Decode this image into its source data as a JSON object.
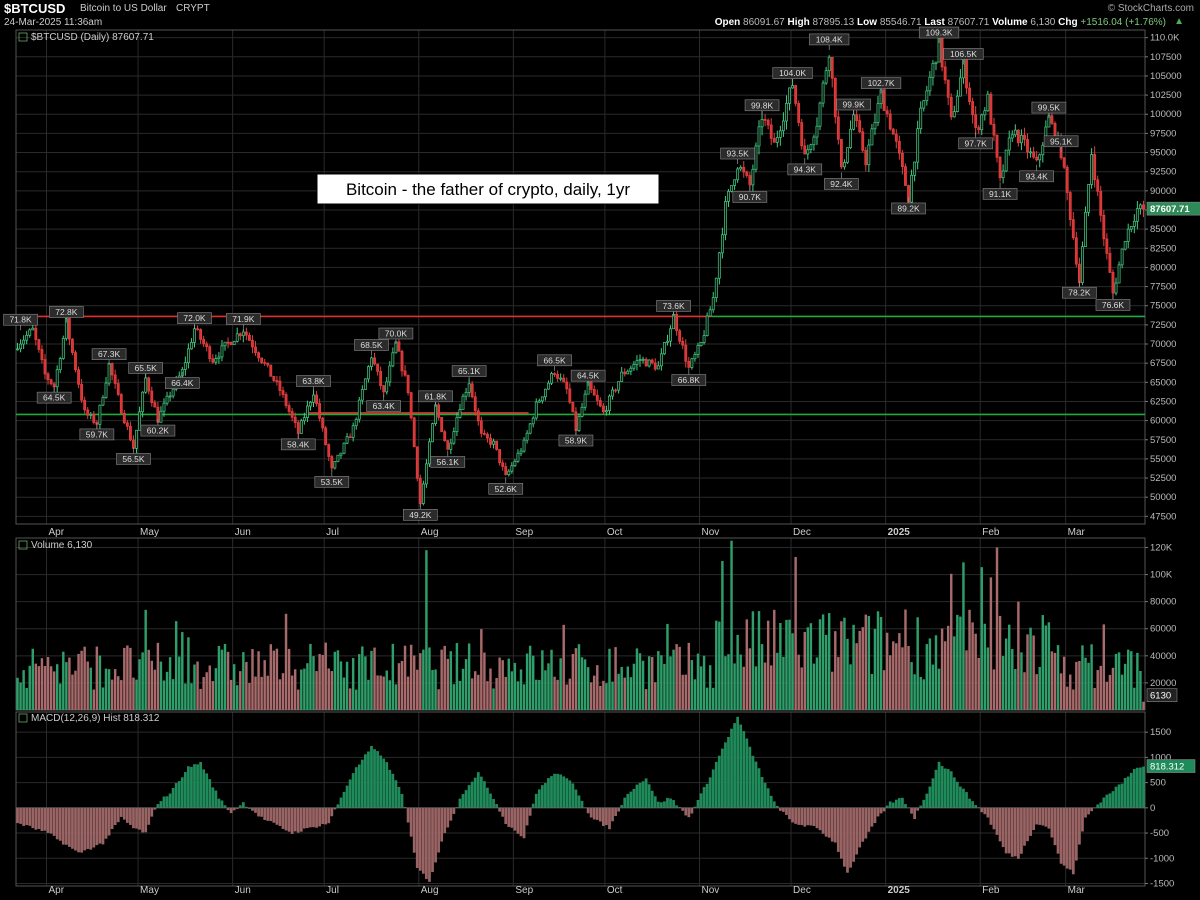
{
  "header": {
    "symbol": "$BTCUSD",
    "name": "Bitcoin to US Dollar",
    "exchange": "CRYPT",
    "date": "24-Mar-2025 11:36am",
    "brand": "© StockCharts.com",
    "open_label": "Open",
    "open": "86091.67",
    "high_label": "High",
    "high": "87895.13",
    "low_label": "Low",
    "low": "85546.71",
    "last_label": "Last",
    "last": "87607.71",
    "volume_label": "Volume",
    "volume": "6,130",
    "chg_label": "Chg",
    "chg": "+1516.04 (+1.76%)"
  },
  "annotation": "Bitcoin - the father of crypto, daily, 1yr",
  "colors": {
    "up": "#2e9e6a",
    "down": "#c0392b",
    "grid": "#2a2a2a",
    "resistance": "#e03030",
    "support": "#1faa3a"
  },
  "chart_data": [
    {
      "type": "candlestick",
      "title": "$BTCUSD (Daily) 87607.71",
      "y_ticks": [
        47500,
        50000,
        52500,
        55000,
        57500,
        60000,
        62500,
        65000,
        67500,
        70000,
        72500,
        75000,
        77500,
        80000,
        82500,
        85000,
        87500,
        90000,
        92500,
        95000,
        97500,
        100000,
        102500,
        105000,
        107500,
        110000
      ],
      "y_tick_labels": [
        "47500",
        "50000",
        "52500",
        "55000",
        "57500",
        "60000",
        "62500",
        "65000",
        "67500",
        "70000",
        "72500",
        "75000",
        "77500",
        "80000",
        "82500",
        "85000",
        "87500",
        "90000",
        "92500",
        "95000",
        "97500",
        "100000",
        "102500",
        "105000",
        "107500",
        "110.0K"
      ],
      "ylim": [
        46500,
        111000
      ],
      "last_value_label": "87607.71",
      "x_month_labels": [
        {
          "label": "Apr",
          "day": 10
        },
        {
          "label": "May",
          "day": 40
        },
        {
          "label": "Jun",
          "day": 71
        },
        {
          "label": "Jul",
          "day": 101
        },
        {
          "label": "Aug",
          "day": 132
        },
        {
          "label": "Sep",
          "day": 163
        },
        {
          "label": "Oct",
          "day": 193
        },
        {
          "label": "Nov",
          "day": 224
        },
        {
          "label": "Dec",
          "day": 254
        },
        {
          "label": "2025",
          "day": 285
        },
        {
          "label": "Feb",
          "day": 316
        },
        {
          "label": "Mar",
          "day": 344
        }
      ],
      "days": 370,
      "close_path": [
        [
          0,
          70000
        ],
        [
          5,
          71800
        ],
        [
          9,
          66000
        ],
        [
          12,
          64500
        ],
        [
          16,
          72800
        ],
        [
          22,
          61000
        ],
        [
          26,
          59700
        ],
        [
          30,
          67300
        ],
        [
          34,
          61500
        ],
        [
          38,
          56500
        ],
        [
          42,
          65500
        ],
        [
          46,
          60200
        ],
        [
          50,
          63500
        ],
        [
          54,
          66400
        ],
        [
          58,
          72000
        ],
        [
          64,
          68000
        ],
        [
          70,
          70500
        ],
        [
          74,
          71900
        ],
        [
          80,
          68000
        ],
        [
          86,
          64000
        ],
        [
          92,
          58400
        ],
        [
          97,
          63800
        ],
        [
          103,
          53500
        ],
        [
          110,
          59000
        ],
        [
          116,
          68500
        ],
        [
          120,
          63400
        ],
        [
          124,
          70000
        ],
        [
          128,
          64000
        ],
        [
          132,
          49200
        ],
        [
          137,
          61800
        ],
        [
          141,
          56100
        ],
        [
          145,
          62000
        ],
        [
          148,
          65100
        ],
        [
          152,
          58000
        ],
        [
          156,
          57000
        ],
        [
          160,
          52600
        ],
        [
          166,
          57000
        ],
        [
          170,
          62000
        ],
        [
          176,
          66500
        ],
        [
          180,
          64000
        ],
        [
          183,
          58900
        ],
        [
          187,
          64500
        ],
        [
          192,
          61000
        ],
        [
          198,
          66000
        ],
        [
          204,
          68000
        ],
        [
          210,
          67000
        ],
        [
          215,
          73600
        ],
        [
          220,
          66800
        ],
        [
          224,
          70000
        ],
        [
          228,
          76000
        ],
        [
          232,
          88000
        ],
        [
          236,
          93500
        ],
        [
          240,
          90700
        ],
        [
          244,
          99800
        ],
        [
          248,
          96000
        ],
        [
          254,
          104000
        ],
        [
          258,
          94300
        ],
        [
          262,
          99000
        ],
        [
          266,
          108400
        ],
        [
          270,
          92400
        ],
        [
          274,
          99900
        ],
        [
          278,
          94000
        ],
        [
          283,
          102700
        ],
        [
          288,
          96000
        ],
        [
          292,
          89200
        ],
        [
          296,
          100000
        ],
        [
          302,
          109300
        ],
        [
          306,
          99000
        ],
        [
          310,
          106500
        ],
        [
          314,
          97700
        ],
        [
          318,
          102000
        ],
        [
          322,
          91100
        ],
        [
          326,
          98000
        ],
        [
          330,
          96000
        ],
        [
          334,
          93400
        ],
        [
          338,
          99500
        ],
        [
          342,
          95100
        ],
        [
          346,
          84000
        ],
        [
          348,
          78200
        ],
        [
          352,
          95000
        ],
        [
          356,
          84000
        ],
        [
          359,
          76600
        ],
        [
          363,
          84000
        ],
        [
          367,
          87607.71
        ]
      ],
      "resistance_lines": [
        {
          "y": 73600,
          "from_day": 0,
          "to_day": 228,
          "color": "resistance"
        },
        {
          "y": 61000,
          "from_day": 96,
          "to_day": 168,
          "color": "resistance"
        },
        {
          "y": 73600,
          "from_day": 228,
          "to_day": 370,
          "color": "support"
        },
        {
          "y": 60800,
          "from_day": 0,
          "to_day": 370,
          "color": "support"
        }
      ],
      "peak_labels": [
        {
          "day": 1,
          "value": 71800,
          "text": "71.8K",
          "pos": "above"
        },
        {
          "day": 12,
          "value": 64500,
          "text": "64.5K",
          "pos": "below"
        },
        {
          "day": 16,
          "value": 72800,
          "text": "72.8K",
          "pos": "above"
        },
        {
          "day": 26,
          "value": 59700,
          "text": "59.7K",
          "pos": "below"
        },
        {
          "day": 30,
          "value": 67300,
          "text": "67.3K",
          "pos": "above"
        },
        {
          "day": 38,
          "value": 56500,
          "text": "56.5K",
          "pos": "below"
        },
        {
          "day": 42,
          "value": 65500,
          "text": "65.5K",
          "pos": "above"
        },
        {
          "day": 46,
          "value": 60200,
          "text": "60.2K",
          "pos": "below"
        },
        {
          "day": 54,
          "value": 66400,
          "text": "66.4K",
          "pos": "below"
        },
        {
          "day": 58,
          "value": 72000,
          "text": "72.0K",
          "pos": "above"
        },
        {
          "day": 74,
          "value": 71900,
          "text": "71.9K",
          "pos": "above"
        },
        {
          "day": 92,
          "value": 58400,
          "text": "58.4K",
          "pos": "below"
        },
        {
          "day": 97,
          "value": 63800,
          "text": "63.8K",
          "pos": "above"
        },
        {
          "day": 103,
          "value": 53500,
          "text": "53.5K",
          "pos": "below"
        },
        {
          "day": 116,
          "value": 68500,
          "text": "68.5K",
          "pos": "above"
        },
        {
          "day": 120,
          "value": 63400,
          "text": "63.4K",
          "pos": "below"
        },
        {
          "day": 124,
          "value": 70000,
          "text": "70.0K",
          "pos": "above"
        },
        {
          "day": 132,
          "value": 49200,
          "text": "49.2K",
          "pos": "below"
        },
        {
          "day": 137,
          "value": 61800,
          "text": "61.8K",
          "pos": "above"
        },
        {
          "day": 141,
          "value": 56100,
          "text": "56.1K",
          "pos": "below"
        },
        {
          "day": 148,
          "value": 65100,
          "text": "65.1K",
          "pos": "above"
        },
        {
          "day": 160,
          "value": 52600,
          "text": "52.6K",
          "pos": "below"
        },
        {
          "day": 176,
          "value": 66500,
          "text": "66.5K",
          "pos": "above"
        },
        {
          "day": 183,
          "value": 58900,
          "text": "58.9K",
          "pos": "below"
        },
        {
          "day": 187,
          "value": 64500,
          "text": "64.5K",
          "pos": "above"
        },
        {
          "day": 215,
          "value": 73600,
          "text": "73.6K",
          "pos": "above"
        },
        {
          "day": 220,
          "value": 66800,
          "text": "66.8K",
          "pos": "below"
        },
        {
          "day": 236,
          "value": 93500,
          "text": "93.5K",
          "pos": "above"
        },
        {
          "day": 240,
          "value": 90700,
          "text": "90.7K",
          "pos": "below"
        },
        {
          "day": 244,
          "value": 99800,
          "text": "99.8K",
          "pos": "above"
        },
        {
          "day": 254,
          "value": 104000,
          "text": "104.0K",
          "pos": "above"
        },
        {
          "day": 258,
          "value": 94300,
          "text": "94.3K",
          "pos": "below"
        },
        {
          "day": 266,
          "value": 108400,
          "text": "108.4K",
          "pos": "above"
        },
        {
          "day": 270,
          "value": 92400,
          "text": "92.4K",
          "pos": "below"
        },
        {
          "day": 274,
          "value": 99900,
          "text": "99.9K",
          "pos": "above"
        },
        {
          "day": 283,
          "value": 102700,
          "text": "102.7K",
          "pos": "above"
        },
        {
          "day": 292,
          "value": 89200,
          "text": "89.2K",
          "pos": "below"
        },
        {
          "day": 302,
          "value": 109300,
          "text": "109.3K",
          "pos": "above"
        },
        {
          "day": 310,
          "value": 106500,
          "text": "106.5K",
          "pos": "above"
        },
        {
          "day": 314,
          "value": 97700,
          "text": "97.7K",
          "pos": "below"
        },
        {
          "day": 322,
          "value": 91100,
          "text": "91.1K",
          "pos": "below"
        },
        {
          "day": 334,
          "value": 93400,
          "text": "93.4K",
          "pos": "below"
        },
        {
          "day": 338,
          "value": 99500,
          "text": "99.5K",
          "pos": "above"
        },
        {
          "day": 342,
          "value": 95100,
          "text": "95.1K",
          "pos": "above"
        },
        {
          "day": 348,
          "value": 78200,
          "text": "78.2K",
          "pos": "below"
        },
        {
          "day": 359,
          "value": 76600,
          "text": "76.6K",
          "pos": "below"
        }
      ]
    },
    {
      "type": "bar",
      "title": "Volume 6,130",
      "y_ticks": [
        20000,
        40000,
        60000,
        80000,
        100000,
        120000
      ],
      "y_tick_labels": [
        "20000",
        "40000",
        "60000",
        "80000",
        "100K",
        "120K"
      ],
      "ylim": [
        0,
        127000
      ],
      "last_value_label": "6130",
      "spikes": [
        {
          "day": 134,
          "value": 118000
        },
        {
          "day": 231,
          "value": 110000
        },
        {
          "day": 234,
          "value": 125000
        },
        {
          "day": 255,
          "value": 113000
        },
        {
          "day": 310,
          "value": 109000
        },
        {
          "day": 321,
          "value": 120000
        },
        {
          "day": 328,
          "value": 80000
        }
      ]
    },
    {
      "type": "bar",
      "title": "MACD(12,26,9) Hist 818.312",
      "y_ticks": [
        -1500,
        -1000,
        -500,
        0,
        500,
        1000,
        1500
      ],
      "y_tick_labels": [
        "-1500",
        "-1000",
        "-500",
        "0",
        "500",
        "1000",
        "1500"
      ],
      "ylim": [
        -1550,
        1900
      ],
      "last_value_label": "818.312",
      "hist_path": [
        [
          0,
          -300
        ],
        [
          10,
          -500
        ],
        [
          20,
          -900
        ],
        [
          28,
          -700
        ],
        [
          34,
          -200
        ],
        [
          38,
          -400
        ],
        [
          42,
          -500
        ],
        [
          46,
          100
        ],
        [
          50,
          300
        ],
        [
          56,
          800
        ],
        [
          60,
          900
        ],
        [
          66,
          200
        ],
        [
          70,
          -100
        ],
        [
          74,
          100
        ],
        [
          80,
          -200
        ],
        [
          90,
          -500
        ],
        [
          96,
          -400
        ],
        [
          102,
          -300
        ],
        [
          110,
          700
        ],
        [
          116,
          1200
        ],
        [
          120,
          1000
        ],
        [
          126,
          300
        ],
        [
          131,
          -1200
        ],
        [
          135,
          -1450
        ],
        [
          140,
          -500
        ],
        [
          146,
          300
        ],
        [
          151,
          700
        ],
        [
          156,
          200
        ],
        [
          160,
          -300
        ],
        [
          166,
          -600
        ],
        [
          170,
          300
        ],
        [
          176,
          700
        ],
        [
          182,
          500
        ],
        [
          188,
          -200
        ],
        [
          194,
          -400
        ],
        [
          200,
          300
        ],
        [
          206,
          600
        ],
        [
          210,
          100
        ],
        [
          214,
          200
        ],
        [
          220,
          -200
        ],
        [
          226,
          500
        ],
        [
          232,
          1300
        ],
        [
          236,
          1800
        ],
        [
          242,
          900
        ],
        [
          248,
          100
        ],
        [
          254,
          -300
        ],
        [
          262,
          -400
        ],
        [
          268,
          -700
        ],
        [
          272,
          -1300
        ],
        [
          276,
          -800
        ],
        [
          282,
          -200
        ],
        [
          286,
          100
        ],
        [
          290,
          200
        ],
        [
          294,
          -200
        ],
        [
          298,
          300
        ],
        [
          302,
          900
        ],
        [
          306,
          700
        ],
        [
          312,
          200
        ],
        [
          318,
          -200
        ],
        [
          324,
          -900
        ],
        [
          328,
          -1000
        ],
        [
          334,
          -300
        ],
        [
          338,
          -400
        ],
        [
          342,
          -1100
        ],
        [
          346,
          -1300
        ],
        [
          350,
          -200
        ],
        [
          356,
          200
        ],
        [
          362,
          500
        ],
        [
          367,
          818
        ]
      ]
    }
  ]
}
